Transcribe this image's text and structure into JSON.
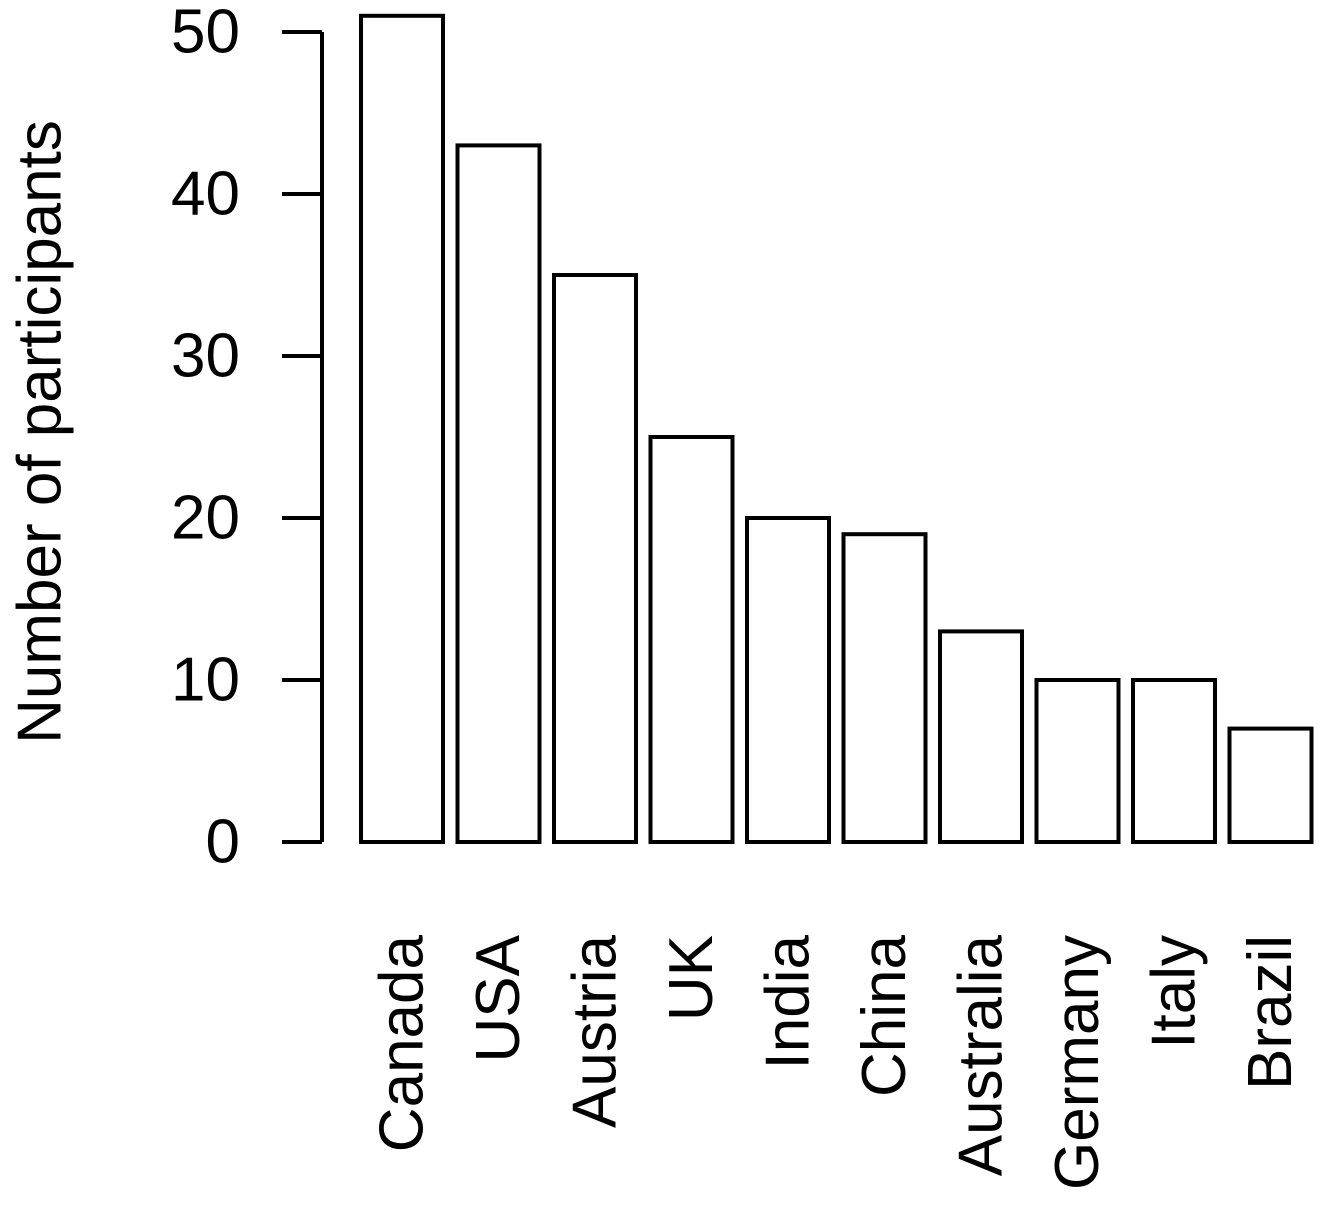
{
  "chart_data": {
    "type": "bar",
    "title": "",
    "xlabel": "",
    "ylabel": "Number of participants",
    "categories": [
      "Canada",
      "USA",
      "Austria",
      "UK",
      "India",
      "China",
      "Australia",
      "Germany",
      "Italy",
      "Brazil"
    ],
    "values": [
      51,
      43,
      35,
      25,
      20,
      19,
      13,
      10,
      10,
      7
    ],
    "ylim": [
      0,
      50
    ],
    "yticks": [
      "0",
      "10",
      "20",
      "30",
      "40",
      "50"
    ],
    "grid": false,
    "legend": "none",
    "colors": {
      "bar_fill": "#ffffff",
      "bar_stroke": "#000000",
      "axis": "#000000"
    }
  }
}
